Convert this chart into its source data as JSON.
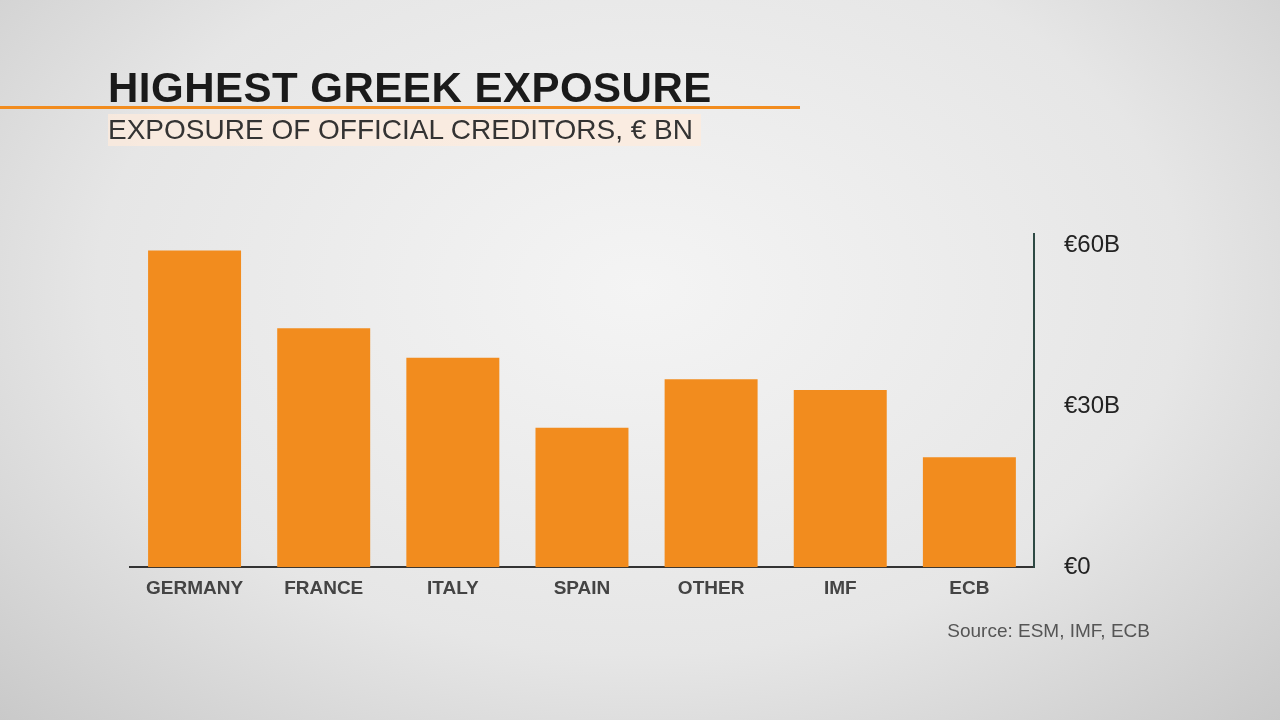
{
  "chart_data": {
    "type": "bar",
    "title": "HIGHEST GREEK EXPOSURE",
    "subtitle": "EXPOSURE OF OFFICIAL CREDITORS, € BN",
    "categories": [
      "GERMANY",
      "FRANCE",
      "ITALY",
      "SPAIN",
      "OTHER",
      "IMF",
      "ECB"
    ],
    "values": [
      59,
      44.5,
      39,
      26,
      35,
      33,
      20.5
    ],
    "color": "#f28c1e",
    "ylim": [
      0,
      62
    ],
    "yticks": [
      {
        "value": 0,
        "label": "€0"
      },
      {
        "value": 30,
        "label": "€30B"
      },
      {
        "value": 60,
        "label": "€60B"
      }
    ],
    "grid": false,
    "legend": false,
    "annotations": [
      "Source: ESM, IMF, ECB"
    ]
  }
}
